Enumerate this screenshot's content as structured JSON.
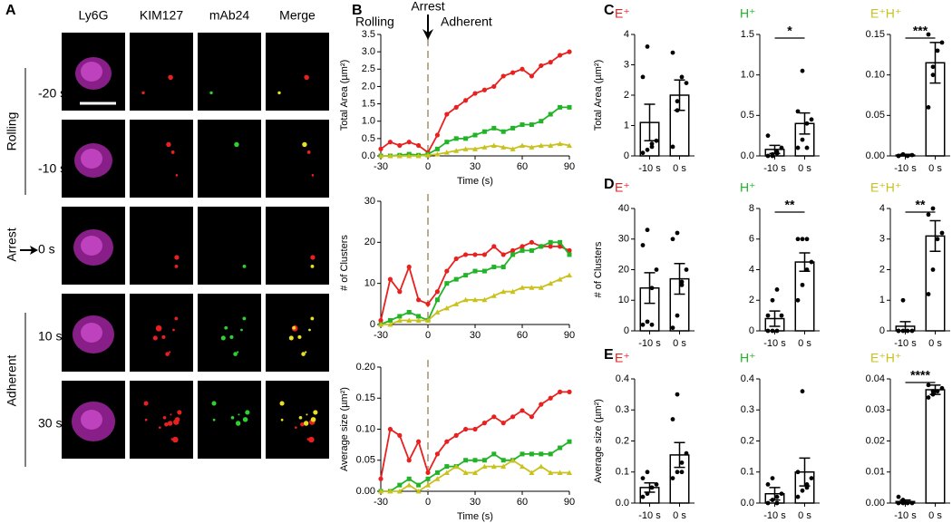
{
  "panel_a": {
    "label": "A",
    "columns": [
      "Ly6G",
      "KIM127",
      "mAb24",
      "Merge"
    ],
    "times": [
      "-20 s",
      "-10 s",
      "0 s",
      "10 s",
      "30 s"
    ],
    "phases": [
      "Rolling",
      "Arrest",
      "Adherent"
    ]
  },
  "chart_data": [
    {
      "type": "line",
      "panel": "B",
      "ylabel": "Total Area (µm²)",
      "xlabel": "Time (s)",
      "vline": 0,
      "annotations": [
        "Arrest",
        "Rolling",
        "Adherent"
      ],
      "x": [
        -30,
        -24,
        -18,
        -12,
        -6,
        0,
        6,
        12,
        18,
        24,
        30,
        36,
        42,
        48,
        54,
        60,
        66,
        72,
        78,
        84,
        90
      ],
      "series": [
        {
          "color": "#e8211f",
          "marker": "circle",
          "values": [
            0.2,
            0.4,
            0.3,
            0.4,
            0.3,
            0.1,
            0.6,
            1.2,
            1.4,
            1.6,
            1.8,
            1.9,
            2.0,
            2.3,
            2.4,
            2.5,
            2.3,
            2.6,
            2.7,
            2.9,
            3.0
          ]
        },
        {
          "color": "#22b427",
          "marker": "square",
          "values": [
            0,
            0,
            0.02,
            0.05,
            0.02,
            0.05,
            0.2,
            0.4,
            0.5,
            0.5,
            0.6,
            0.7,
            0.8,
            0.7,
            0.8,
            0.9,
            0.9,
            1.0,
            1.2,
            1.4,
            1.4
          ]
        },
        {
          "color": "#c9c21d",
          "marker": "triangle",
          "values": [
            0,
            0,
            0,
            0,
            0,
            0.02,
            0.05,
            0.1,
            0.15,
            0.2,
            0.2,
            0.25,
            0.3,
            0.25,
            0.2,
            0.3,
            0.25,
            0.3,
            0.3,
            0.35,
            0.3
          ]
        }
      ],
      "xlim": [
        -30,
        90
      ],
      "xticks": [
        -30,
        0,
        30,
        60,
        90
      ],
      "ylim": [
        0,
        3.5
      ],
      "yticks": [
        {
          "value": 0,
          "label": "0.0"
        },
        0.5,
        {
          "value": 1,
          "label": "1.0"
        },
        1.5,
        {
          "value": 2,
          "label": "2.0"
        },
        2.5,
        {
          "value": 3,
          "label": "3.0"
        },
        3.5
      ]
    },
    {
      "type": "line",
      "ylabel": "# of Clusters",
      "vline": 0,
      "x": [
        -30,
        -24,
        -18,
        -12,
        -6,
        0,
        6,
        12,
        18,
        24,
        30,
        36,
        42,
        48,
        54,
        60,
        66,
        72,
        78,
        84,
        90
      ],
      "series": [
        {
          "color": "#e8211f",
          "marker": "circle",
          "values": [
            1,
            11,
            8,
            14,
            6,
            5,
            8,
            13,
            16,
            17,
            17,
            17,
            19,
            17,
            18,
            19,
            20,
            19,
            19,
            19,
            18
          ]
        },
        {
          "color": "#22b427",
          "marker": "square",
          "values": [
            0,
            1,
            2,
            3,
            2,
            1,
            6,
            10,
            11,
            12,
            13,
            13,
            14,
            14,
            17,
            18,
            18,
            19,
            20,
            20,
            17
          ]
        },
        {
          "color": "#c9c21d",
          "marker": "triangle",
          "values": [
            0,
            0,
            1,
            1,
            1,
            1,
            3,
            4,
            5,
            6,
            6,
            6,
            7,
            8,
            8,
            9,
            9,
            9,
            10,
            11,
            12
          ]
        }
      ],
      "xlim": [
        -30,
        90
      ],
      "xticks": [
        -30,
        0,
        30,
        60,
        90
      ],
      "ylim": [
        0,
        30
      ],
      "yticks": [
        0,
        10,
        20,
        30
      ]
    },
    {
      "type": "line",
      "ylabel": "Average size (µm²)",
      "xlabel": "Time (s)",
      "vline": 0,
      "x": [
        -30,
        -24,
        -18,
        -12,
        -6,
        0,
        6,
        12,
        18,
        24,
        30,
        36,
        42,
        48,
        54,
        60,
        66,
        72,
        78,
        84,
        90
      ],
      "series": [
        {
          "color": "#e8211f",
          "marker": "circle",
          "values": [
            0.02,
            0.1,
            0.09,
            0.05,
            0.08,
            0.03,
            0.06,
            0.08,
            0.09,
            0.1,
            0.1,
            0.11,
            0.12,
            0.11,
            0.12,
            0.13,
            0.12,
            0.14,
            0.15,
            0.16,
            0.16
          ]
        },
        {
          "color": "#22b427",
          "marker": "square",
          "values": [
            0,
            0,
            0.01,
            0.02,
            0.01,
            0.02,
            0.03,
            0.04,
            0.04,
            0.05,
            0.05,
            0.05,
            0.06,
            0.05,
            0.05,
            0.06,
            0.06,
            0.06,
            0.06,
            0.07,
            0.08
          ]
        },
        {
          "color": "#c9c21d",
          "marker": "triangle",
          "values": [
            0,
            0,
            0,
            0.01,
            0,
            0.01,
            0.02,
            0.03,
            0.04,
            0.03,
            0.03,
            0.04,
            0.04,
            0.04,
            0.05,
            0.04,
            0.03,
            0.04,
            0.03,
            0.03,
            0.03
          ]
        }
      ],
      "xlim": [
        -30,
        90
      ],
      "xticks": [
        -30,
        0,
        30,
        60,
        90
      ],
      "ylim": [
        0,
        0.2
      ],
      "yticks": [
        {
          "value": 0,
          "label": "0.00"
        },
        0.05,
        {
          "value": 0.1,
          "label": "0.10"
        },
        0.15,
        {
          "value": 0.2,
          "label": "0.20"
        }
      ]
    },
    {
      "type": "bar",
      "panel": "C",
      "title": "E⁺",
      "title_color": "#e8211f",
      "ylabel": "Total Area (µm²)",
      "categories": [
        "-10 s",
        "0 s"
      ],
      "values": [
        1.1,
        2.0
      ],
      "errors": [
        0.6,
        0.5
      ],
      "points": [
        [
          0.1,
          0.2,
          0.3,
          0.5,
          2.6,
          3.6,
          0.4
        ],
        [
          0.3,
          1.5,
          2.6,
          2.4,
          3.4,
          1.8
        ]
      ],
      "ylim": [
        0,
        4
      ],
      "yticks": [
        0,
        1,
        2,
        3,
        4
      ]
    },
    {
      "type": "bar",
      "title": "H⁺",
      "title_color": "#22b427",
      "categories": [
        "-10 s",
        "0 s"
      ],
      "significance": "*",
      "values": [
        0.08,
        0.4
      ],
      "errors": [
        0.05,
        0.13
      ],
      "points": [
        [
          0.0,
          0.02,
          0.05,
          0.1,
          0.25,
          0.0,
          0.03
        ],
        [
          0.1,
          0.2,
          0.4,
          0.45,
          0.55,
          1.05,
          0.1
        ]
      ],
      "ylim": [
        0,
        1.5
      ],
      "yticks": [
        {
          "value": 0,
          "label": "0.0"
        },
        0.5,
        {
          "value": 1,
          "label": "1.0"
        },
        1.5
      ]
    },
    {
      "type": "bar",
      "title": "E⁺H⁺",
      "title_color": "#c9c21d",
      "categories": [
        "-10 s",
        "0 s"
      ],
      "significance": "***",
      "values": [
        0.001,
        0.115
      ],
      "errors": [
        0.001,
        0.025
      ],
      "points": [
        [
          0,
          0.002,
          0,
          0.001,
          0
        ],
        [
          0.06,
          0.1,
          0.13,
          0.14,
          0.15,
          0.11
        ]
      ],
      "ylim": [
        0,
        0.15
      ],
      "yticks": [
        {
          "value": 0,
          "label": "0.00"
        },
        0.05,
        {
          "value": 0.1,
          "label": "0.10"
        },
        0.15
      ]
    },
    {
      "type": "bar",
      "panel": "D",
      "title": "E⁺",
      "title_color": "#e8211f",
      "ylabel": "# of Clusters",
      "categories": [
        "-10 s",
        "0 s"
      ],
      "values": [
        14,
        17
      ],
      "errors": [
        5,
        5
      ],
      "points": [
        [
          2,
          3,
          14,
          20,
          28,
          33,
          2
        ],
        [
          1,
          5,
          15,
          20,
          30,
          32,
          16
        ]
      ],
      "ylim": [
        0,
        40
      ],
      "yticks": [
        0,
        10,
        20,
        30,
        40
      ]
    },
    {
      "type": "bar",
      "title": "H⁺",
      "title_color": "#22b427",
      "categories": [
        "-10 s",
        "0 s"
      ],
      "significance": "**",
      "values": [
        0.8,
        4.5
      ],
      "errors": [
        0.5,
        0.6
      ],
      "points": [
        [
          0,
          0,
          0,
          1,
          1,
          2,
          2.7
        ],
        [
          2,
          3,
          4,
          4.5,
          6,
          6,
          6
        ]
      ],
      "ylim": [
        0,
        8
      ],
      "yticks": [
        0,
        2,
        4,
        6,
        8
      ]
    },
    {
      "type": "bar",
      "title": "E⁺H⁺",
      "title_color": "#c9c21d",
      "categories": [
        "-10 s",
        "0 s"
      ],
      "significance": "**",
      "values": [
        0.15,
        3.1
      ],
      "errors": [
        0.15,
        0.5
      ],
      "points": [
        [
          0,
          0,
          0,
          0,
          0,
          1
        ],
        [
          1.2,
          2,
          3,
          3.2,
          3.8,
          4
        ]
      ],
      "ylim": [
        0,
        4
      ],
      "yticks": [
        0,
        1,
        2,
        3,
        4
      ]
    },
    {
      "type": "bar",
      "panel": "E",
      "title": "E⁺",
      "title_color": "#e8211f",
      "ylabel": "Average size  (µm²)",
      "categories": [
        "-10 s",
        "0 s"
      ],
      "values": [
        0.05,
        0.155
      ],
      "errors": [
        0.015,
        0.04
      ],
      "points": [
        [
          0.02,
          0.03,
          0.05,
          0.06,
          0.08,
          0.1
        ],
        [
          0.08,
          0.1,
          0.13,
          0.16,
          0.27,
          0.35,
          0.1
        ]
      ],
      "ylim": [
        0,
        0.4
      ],
      "yticks": [
        {
          "value": 0,
          "label": "0.0"
        },
        0.1,
        0.2,
        0.3,
        0.4
      ]
    },
    {
      "type": "bar",
      "title": "H⁺",
      "title_color": "#22b427",
      "categories": [
        "-10 s",
        "0 s"
      ],
      "values": [
        0.03,
        0.1
      ],
      "errors": [
        0.02,
        0.045
      ],
      "points": [
        [
          0,
          0.01,
          0.02,
          0.03,
          0.06,
          0.08,
          0.0
        ],
        [
          0.02,
          0.04,
          0.06,
          0.08,
          0.1,
          0.36,
          0.05
        ]
      ],
      "ylim": [
        0,
        0.4
      ],
      "yticks": [
        {
          "value": 0,
          "label": "0.0"
        },
        0.1,
        0.2,
        0.3,
        0.4
      ]
    },
    {
      "type": "bar",
      "title": "E⁺H⁺",
      "title_color": "#c9c21d",
      "categories": [
        "-10 s",
        "0 s"
      ],
      "significance": "****",
      "values": [
        0.0005,
        0.0365
      ],
      "errors": [
        0.0005,
        0.0015
      ],
      "points": [
        [
          0,
          0.001,
          0,
          0,
          0.002,
          0
        ],
        [
          0.034,
          0.035,
          0.036,
          0.037,
          0.038,
          0.036
        ]
      ],
      "ylim": [
        0,
        0.04
      ],
      "yticks": [
        {
          "value": 0,
          "label": "0.00"
        },
        0.01,
        0.02,
        0.03,
        0.04
      ]
    }
  ]
}
